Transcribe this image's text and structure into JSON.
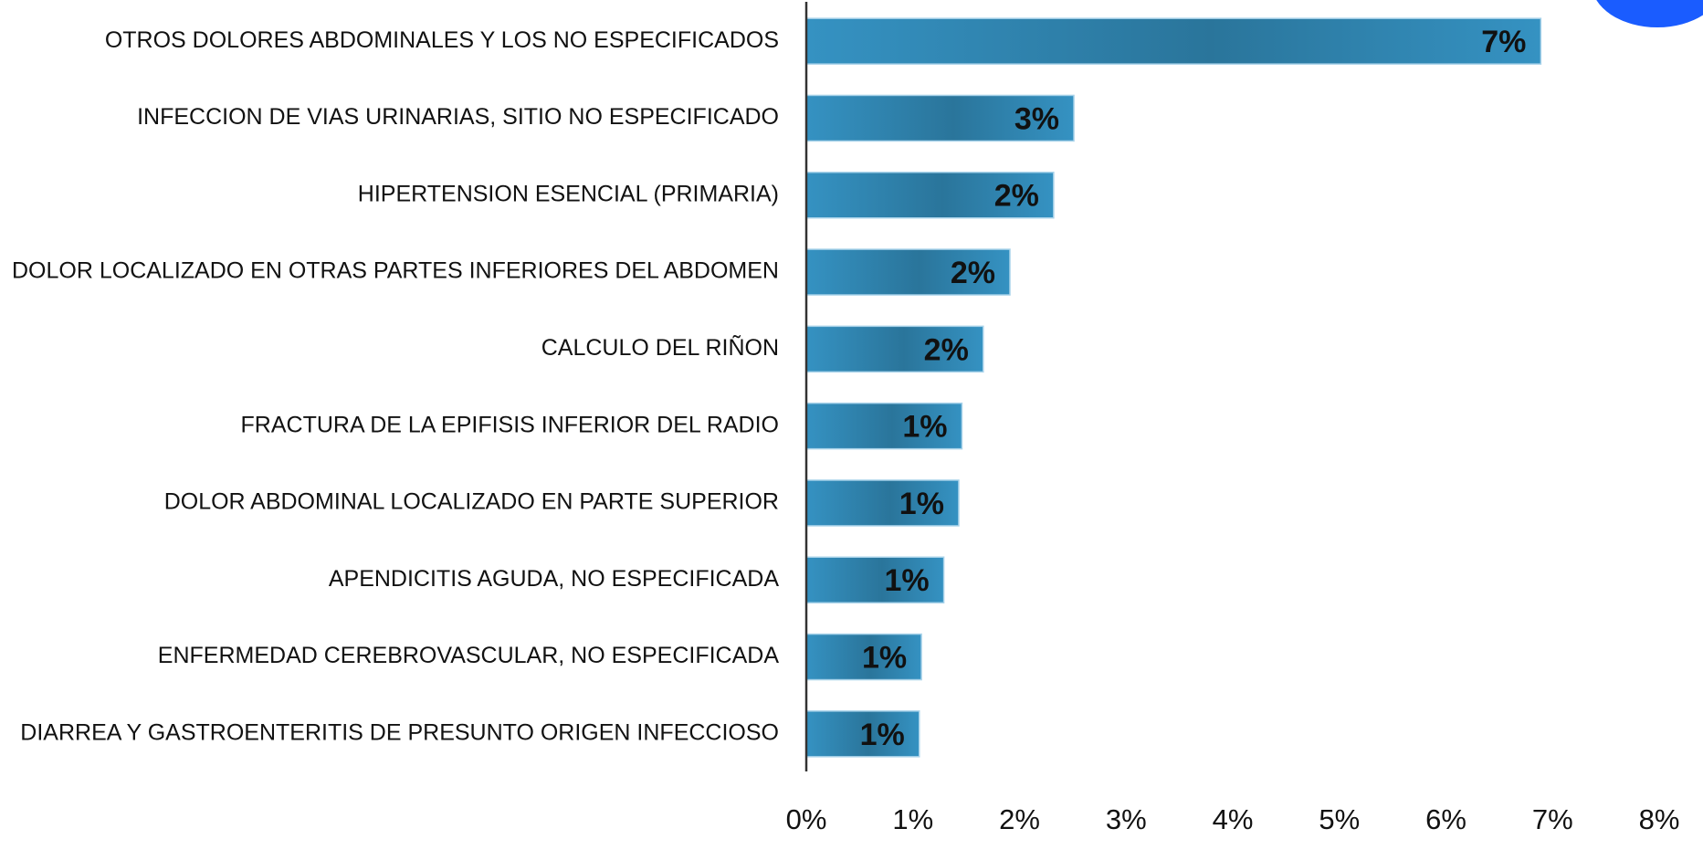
{
  "chart_data": {
    "type": "bar",
    "orientation": "horizontal",
    "categories": [
      "OTROS DOLORES ABDOMINALES Y LOS NO ESPECIFICADOS",
      "INFECCION DE VIAS URINARIAS, SITIO NO ESPECIFICADO",
      "HIPERTENSION ESENCIAL (PRIMARIA)",
      "DOLOR LOCALIZADO EN OTRAS PARTES INFERIORES DEL ABDOMEN",
      "CALCULO DEL RIÑON",
      "FRACTURA DE LA EPIFISIS INFERIOR DEL RADIO",
      "DOLOR ABDOMINAL LOCALIZADO EN PARTE SUPERIOR",
      "APENDICITIS AGUDA, NO ESPECIFICADA",
      "ENFERMEDAD CEREBROVASCULAR, NO ESPECIFICADA",
      "DIARREA Y GASTROENTERITIS DE PRESUNTO ORIGEN INFECCIOSO"
    ],
    "values": [
      6.89,
      2.51,
      2.32,
      1.91,
      1.66,
      1.46,
      1.43,
      1.29,
      1.08,
      1.06
    ],
    "value_labels": [
      "7%",
      "3%",
      "2%",
      "2%",
      "2%",
      "1%",
      "1%",
      "1%",
      "1%",
      "1%"
    ],
    "color": "#3592c2",
    "xlim": [
      0,
      8
    ],
    "xticks": [
      {
        "value": 0,
        "label": "0%"
      },
      {
        "value": 1,
        "label": "1%"
      },
      {
        "value": 2,
        "label": "2%"
      },
      {
        "value": 3,
        "label": "3%"
      },
      {
        "value": 4,
        "label": "4%"
      },
      {
        "value": 5,
        "label": "5%"
      },
      {
        "value": 6,
        "label": "6%"
      },
      {
        "value": 7,
        "label": "7%"
      },
      {
        "value": 8,
        "label": "8%"
      }
    ],
    "grid": false
  }
}
